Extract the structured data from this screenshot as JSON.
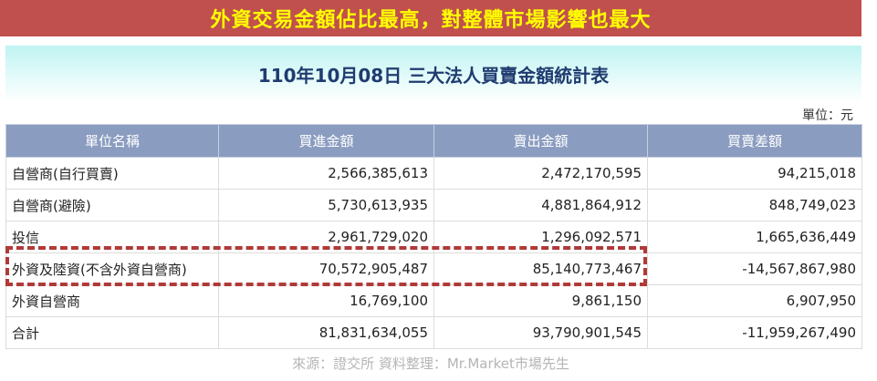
{
  "banner": "外資交易金額佔比最高，對整體市場影響也最大",
  "title": "110年10月08日 三大法人買賣金額統計表",
  "unit": "單位：元",
  "columns": [
    "單位名稱",
    "買進金額",
    "賣出金額",
    "買賣差額"
  ],
  "rows": [
    {
      "name": "自營商(自行買賣)",
      "buy": "2,566,385,613",
      "sell": "2,472,170,595",
      "diff": "94,215,018"
    },
    {
      "name": "自營商(避險)",
      "buy": "5,730,613,935",
      "sell": "4,881,864,912",
      "diff": "848,749,023"
    },
    {
      "name": "投信",
      "buy": "2,961,729,020",
      "sell": "1,296,092,571",
      "diff": "1,665,636,449"
    },
    {
      "name": "外資及陸資(不含外資自營商)",
      "buy": "70,572,905,487",
      "sell": "85,140,773,467",
      "diff": "-14,567,867,980"
    },
    {
      "name": "外資自營商",
      "buy": "16,769,100",
      "sell": "9,861,150",
      "diff": "6,907,950"
    },
    {
      "name": "合計",
      "buy": "81,831,634,055",
      "sell": "93,790,901,545",
      "diff": "-11,959,267,490"
    }
  ],
  "source": "來源：證交所  資料整理：Mr.Market市場先生",
  "colors": {
    "banner_bg": "#c0504d",
    "banner_text": "#ffff00",
    "header_bg": "#8a9cc0",
    "highlight": "#b03a38"
  }
}
